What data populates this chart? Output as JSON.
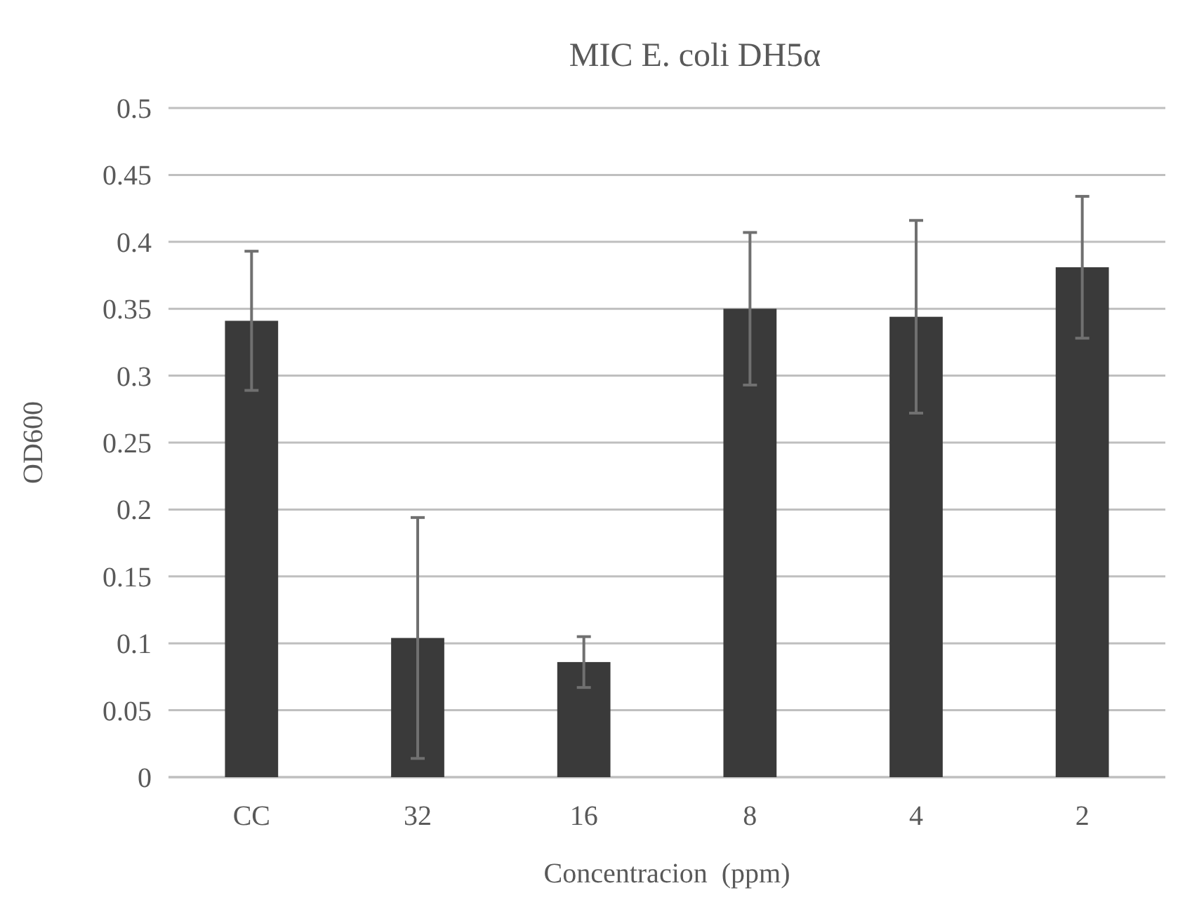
{
  "chart_data": {
    "type": "bar",
    "title": "MIC E. coli DH5α",
    "xlabel": "Concentracion  (ppm)",
    "ylabel": "OD600",
    "categories": [
      "CC",
      "32",
      "16",
      "8",
      "4",
      "2"
    ],
    "values": [
      0.341,
      0.104,
      0.086,
      0.35,
      0.344,
      0.381
    ],
    "errors": [
      0.052,
      0.09,
      0.019,
      0.057,
      0.072,
      0.053
    ],
    "color": "#3a3a3a",
    "ylim": [
      0,
      0.5
    ],
    "yticks": [
      0,
      0.05,
      0.1,
      0.15,
      0.2,
      0.25,
      0.3,
      0.35,
      0.4,
      0.45,
      0.5
    ],
    "grid": "y"
  }
}
